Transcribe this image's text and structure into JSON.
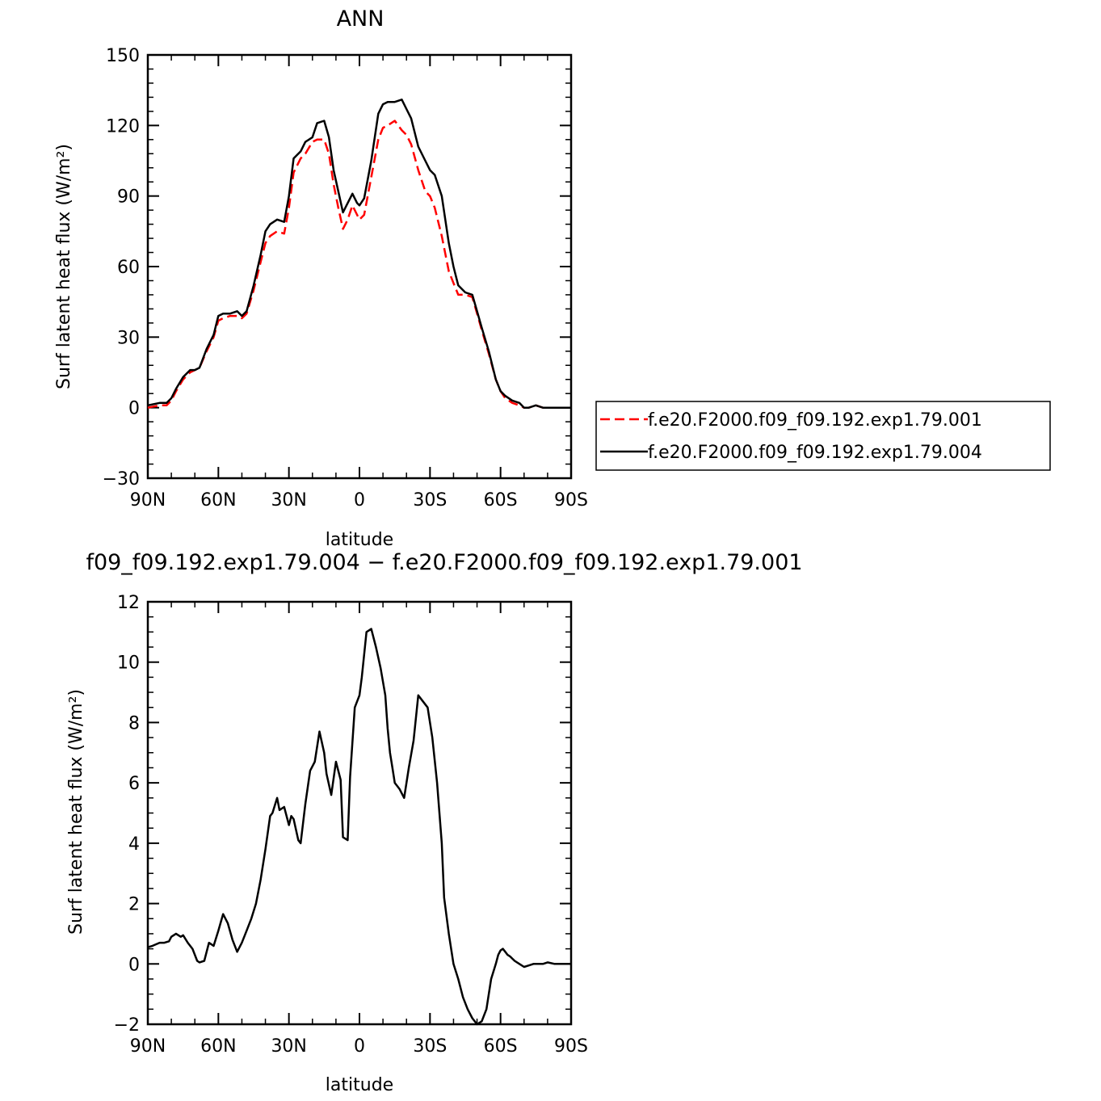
{
  "chart_data": [
    {
      "type": "line",
      "title": "ANN",
      "xlabel": "latitude",
      "ylabel": "Surf latent heat flux (W/m²)",
      "ylim": [
        -30,
        150
      ],
      "xlim": [
        90,
        -90
      ],
      "yticks": [
        -30,
        0,
        30,
        60,
        90,
        120,
        150
      ],
      "xticks": [
        90,
        60,
        30,
        0,
        -30,
        -60,
        -90
      ],
      "xticklabels": [
        "90N",
        "60N",
        "30N",
        "0",
        "30S",
        "60S",
        "90S"
      ],
      "legend_position": "right",
      "series": [
        {
          "name": "f.e20.F2000.f09_f09.192.exp1.79.001",
          "color": "#ff0000",
          "dash": "dashed",
          "x": [
            90,
            85,
            82,
            80,
            78,
            75,
            72,
            70,
            68,
            65,
            62,
            60,
            58,
            55,
            52,
            50,
            48,
            45,
            42,
            40,
            38,
            35,
            32,
            30,
            28,
            25,
            23,
            20,
            18,
            15,
            13,
            11,
            9,
            7,
            5,
            3,
            1,
            0,
            -2,
            -5,
            -8,
            -10,
            -12,
            -15,
            -18,
            -20,
            -22,
            -25,
            -28,
            -30,
            -32,
            -35,
            -38,
            -40,
            -42,
            -45,
            -48,
            -50,
            -52,
            -55,
            -58,
            -60,
            -62,
            -65,
            -68,
            -70,
            -72,
            -75,
            -78,
            -80,
            -82,
            -85,
            -88,
            -90
          ],
          "y": [
            0,
            1,
            1,
            3,
            7,
            12,
            15,
            16,
            17,
            24,
            30,
            37,
            38,
            39,
            39,
            38,
            40,
            50,
            62,
            70,
            73,
            75,
            74,
            85,
            100,
            106,
            108,
            113,
            114,
            114,
            108,
            95,
            85,
            76,
            80,
            86,
            82,
            80,
            82,
            98,
            114,
            119,
            120,
            122,
            118,
            116,
            112,
            101,
            92,
            90,
            85,
            73,
            58,
            53,
            48,
            48,
            47,
            40,
            33,
            23,
            12,
            7,
            4,
            2,
            1,
            0,
            0,
            1,
            0,
            0,
            0,
            0,
            0,
            0
          ]
        },
        {
          "name": "f.e20.F2000.f09_f09.192.exp1.79.004",
          "color": "#000000",
          "dash": "solid",
          "x": [
            90,
            85,
            82,
            80,
            78,
            75,
            72,
            70,
            68,
            65,
            62,
            60,
            58,
            55,
            52,
            50,
            48,
            45,
            42,
            40,
            38,
            35,
            32,
            30,
            28,
            25,
            23,
            20,
            18,
            15,
            13,
            11,
            9,
            7,
            5,
            3,
            1,
            0,
            -2,
            -5,
            -8,
            -10,
            -12,
            -15,
            -18,
            -20,
            -22,
            -25,
            -28,
            -30,
            -32,
            -35,
            -38,
            -40,
            -42,
            -45,
            -48,
            -50,
            -52,
            -55,
            -58,
            -60,
            -62,
            -65,
            -68,
            -70,
            -72,
            -75,
            -78,
            -80,
            -82,
            -85,
            -88,
            -90
          ],
          "y": [
            1,
            2,
            2,
            4,
            8,
            13,
            16,
            16,
            17,
            25,
            31,
            39,
            40,
            40,
            41,
            39,
            41,
            52,
            65,
            75,
            78,
            80,
            79,
            90,
            106,
            109,
            113,
            115,
            121,
            122,
            115,
            101,
            92,
            83,
            87,
            91,
            87,
            86,
            89,
            105,
            125,
            129,
            130,
            130,
            131,
            127,
            123,
            111,
            105,
            101,
            99,
            90,
            70,
            60,
            52,
            49,
            48,
            41,
            34,
            24,
            12,
            7,
            5,
            3,
            2,
            0,
            0,
            1,
            0,
            0,
            0,
            0,
            0,
            0
          ]
        }
      ]
    },
    {
      "type": "line",
      "title": "f09_f09.192.exp1.79.004 − f.e20.F2000.f09_f09.192.exp1.79.001",
      "xlabel": "latitude",
      "ylabel": "Surf latent heat flux (W/m²)",
      "ylim": [
        -2,
        12
      ],
      "xlim": [
        90,
        -90
      ],
      "yticks": [
        -2,
        0,
        2,
        4,
        6,
        8,
        10,
        12
      ],
      "xticks": [
        90,
        60,
        30,
        0,
        -30,
        -60,
        -90
      ],
      "xticklabels": [
        "90N",
        "60N",
        "30N",
        "0",
        "30S",
        "60S",
        "90S"
      ],
      "series": [
        {
          "color": "#000000",
          "dash": "solid",
          "x": [
            90,
            88,
            85,
            83,
            81,
            80,
            78,
            76,
            75,
            73,
            71,
            69,
            68,
            66,
            64,
            62,
            60,
            58,
            56,
            54,
            52,
            50,
            48,
            46,
            44,
            42,
            40,
            38,
            37,
            35,
            34,
            32,
            30,
            29,
            28,
            26,
            25,
            23,
            21,
            19,
            17,
            15,
            14,
            12,
            10,
            8,
            7,
            5,
            4,
            2,
            0,
            -1,
            -3,
            -5,
            -7,
            -9,
            -11,
            -12,
            -13,
            -14,
            -15,
            -17,
            -19,
            -21,
            -23,
            -25,
            -27,
            -29,
            -31,
            -33,
            -35,
            -36,
            -38,
            -40,
            -42,
            -44,
            -46,
            -48,
            -50,
            -52,
            -54,
            -56,
            -58,
            -59,
            -60,
            -61,
            -62,
            -63,
            -64,
            -66,
            -68,
            -70,
            -72,
            -74,
            -76,
            -78,
            -80,
            -83,
            -85,
            -87,
            -88,
            -90
          ],
          "y": [
            0.55,
            0.6,
            0.7,
            0.7,
            0.75,
            0.9,
            1.0,
            0.9,
            0.95,
            0.7,
            0.5,
            0.1,
            0.05,
            0.1,
            0.7,
            0.6,
            1.1,
            1.65,
            1.35,
            0.8,
            0.4,
            0.7,
            1.1,
            1.5,
            2.0,
            2.8,
            3.8,
            4.9,
            5.0,
            5.5,
            5.1,
            5.2,
            4.6,
            4.9,
            4.8,
            4.1,
            4.0,
            5.3,
            6.4,
            6.7,
            7.7,
            7.0,
            6.3,
            5.6,
            6.7,
            6.1,
            4.2,
            4.1,
            6.2,
            8.5,
            8.9,
            9.5,
            11.0,
            11.1,
            10.5,
            9.8,
            8.9,
            7.8,
            7.0,
            6.5,
            6.0,
            5.8,
            5.5,
            6.5,
            7.4,
            8.9,
            8.7,
            8.5,
            7.5,
            6.0,
            4.0,
            2.2,
            1.0,
            0.0,
            -0.5,
            -1.1,
            -1.5,
            -1.8,
            -2.0,
            -1.9,
            -1.5,
            -0.5,
            0.0,
            0.3,
            0.45,
            0.5,
            0.4,
            0.3,
            0.25,
            0.1,
            0.0,
            -0.1,
            -0.05,
            0.0,
            0.0,
            0.0,
            0.05,
            0.0,
            0.0,
            0.0,
            0.0,
            0.0
          ]
        }
      ]
    }
  ]
}
